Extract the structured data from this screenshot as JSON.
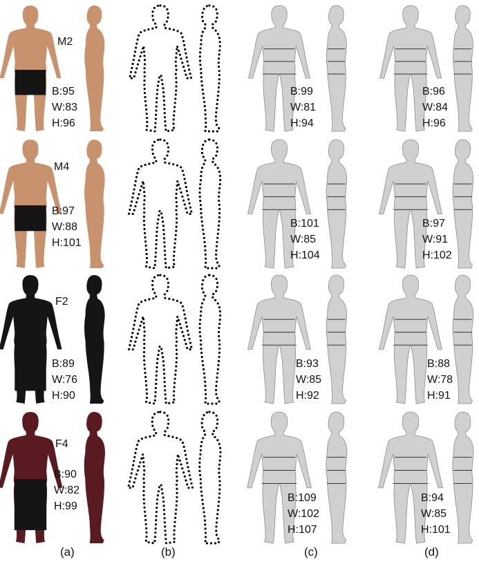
{
  "columns": [
    "(a)",
    "(b)",
    "(c)",
    "(d)"
  ],
  "rows": [
    {
      "subject": "M2",
      "photo": {
        "B": "B:95",
        "W": "W:83",
        "H": "H:96"
      },
      "recon_c": {
        "B": "B:99",
        "W": "W:81",
        "H": "H:94"
      },
      "recon_d": {
        "B": "B:96",
        "W": "W:84",
        "H": "H:96"
      }
    },
    {
      "subject": "M4",
      "photo": {
        "B": "B:97",
        "W": "W:88",
        "H": "H:101"
      },
      "recon_c": {
        "B": "B:101",
        "W": "W:85",
        "H": "H:104"
      },
      "recon_d": {
        "B": "B:97",
        "W": "W:91",
        "H": "H:102"
      }
    },
    {
      "subject": "F2",
      "photo": {
        "B": "B:89",
        "W": "W:76",
        "H": "H:90"
      },
      "recon_c": {
        "B": "B:93",
        "W": "W:85",
        "H": "H:92"
      },
      "recon_d": {
        "B": "B:88",
        "W": "W:78",
        "H": "H:91"
      }
    },
    {
      "subject": "F4",
      "photo": {
        "B": "B:90",
        "W": "W:82",
        "H": "H:99"
      },
      "recon_c": {
        "B": "B:109",
        "W": "W:102",
        "H": "H:107"
      },
      "recon_d": {
        "B": "B:94",
        "W": "W:85",
        "H": "H:101"
      }
    }
  ],
  "colors": {
    "skin": "#c8926e",
    "dark_clothes": "#151515",
    "maroon_top": "#5a1a22",
    "mesh": "#d0d0d0",
    "mesh_stroke": "#8a8a8a",
    "dots": "#000000"
  }
}
